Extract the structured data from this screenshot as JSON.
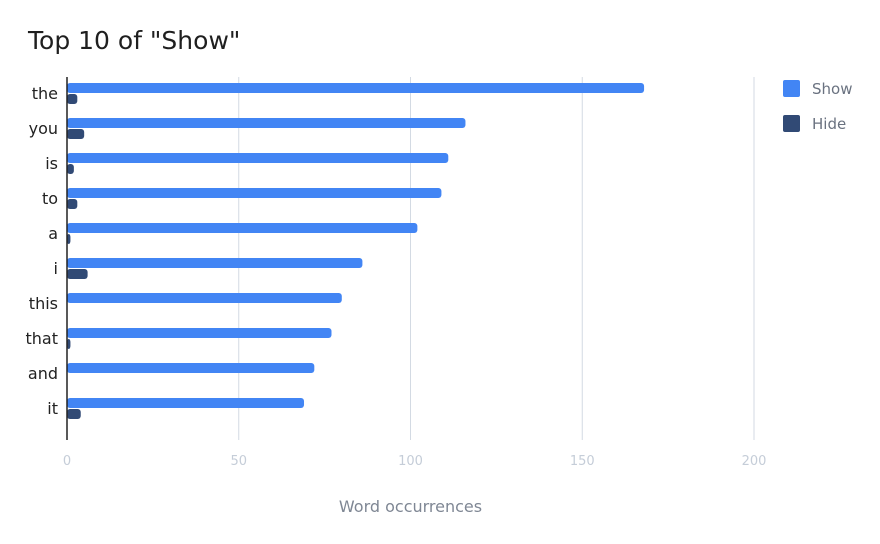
{
  "chart_data": {
    "type": "bar",
    "orientation": "horizontal",
    "title": "Top 10 of \"Show\"",
    "categories": [
      "the",
      "you",
      "is",
      "to",
      "a",
      "i",
      "this",
      "that",
      "and",
      "it"
    ],
    "series": [
      {
        "name": "Show",
        "color": "#4285f4",
        "values": [
          168,
          116,
          111,
          109,
          102,
          86,
          80,
          77,
          72,
          69
        ]
      },
      {
        "name": "Hide",
        "color": "#314a75",
        "values": [
          3,
          5,
          2,
          3,
          1,
          6,
          0,
          1,
          0,
          4
        ]
      }
    ],
    "xlabel": "Word occurrences",
    "ylabel": "",
    "xlim": [
      0,
      200
    ],
    "xticks": [
      0,
      50,
      100,
      150,
      200
    ],
    "grid": true,
    "legend_position": "top-right"
  }
}
